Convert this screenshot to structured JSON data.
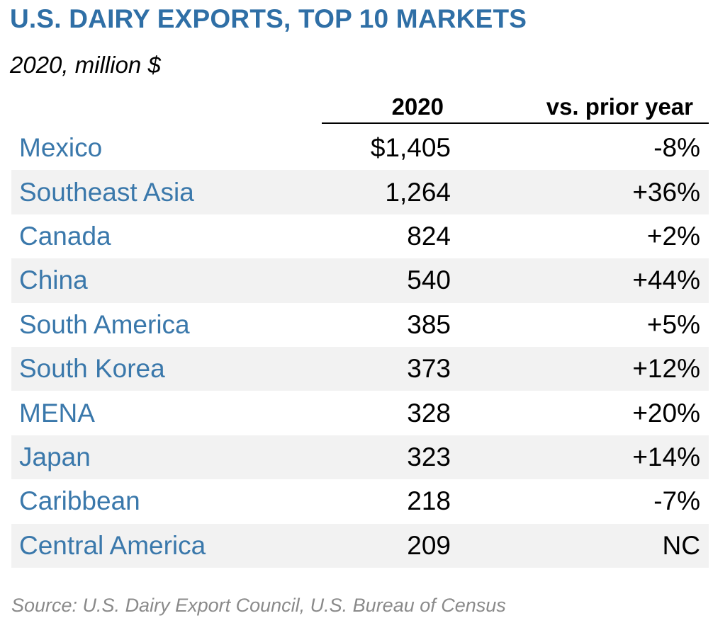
{
  "title": "U.S. DAIRY EXPORTS, TOP 10 MARKETS",
  "subtitle": "2020, million $",
  "columns": {
    "value": "2020",
    "change": "vs. prior year"
  },
  "source": "Source: U.S. Dairy Export Council, U.S. Bureau of Census",
  "colors": {
    "title": "#2f6fa6",
    "market_label": "#3a78ab",
    "row_shade": "#f2f2f2",
    "source": "#8a8a8a"
  },
  "chart_data": {
    "type": "table",
    "title": "U.S. DAIRY EXPORTS, TOP 10 MARKETS",
    "subtitle": "2020, million $",
    "columns": [
      "2020",
      "vs. prior year"
    ],
    "rows": [
      {
        "market": "Mexico",
        "value_label": "$1,405",
        "value": 1405,
        "change": "-8%"
      },
      {
        "market": "Southeast Asia",
        "value_label": "1,264",
        "value": 1264,
        "change": "+36%"
      },
      {
        "market": "Canada",
        "value_label": "824",
        "value": 824,
        "change": "+2%"
      },
      {
        "market": "China",
        "value_label": "540",
        "value": 540,
        "change": "+44%"
      },
      {
        "market": "South America",
        "value_label": "385",
        "value": 385,
        "change": "+5%"
      },
      {
        "market": "South Korea",
        "value_label": "373",
        "value": 373,
        "change": "+12%"
      },
      {
        "market": "MENA",
        "value_label": "328",
        "value": 328,
        "change": "+20%"
      },
      {
        "market": "Japan",
        "value_label": "323",
        "value": 323,
        "change": "+14%"
      },
      {
        "market": "Caribbean",
        "value_label": "218",
        "value": 218,
        "change": "-7%"
      },
      {
        "market": "Central America",
        "value_label": "209",
        "value": 209,
        "change": "NC"
      }
    ]
  }
}
